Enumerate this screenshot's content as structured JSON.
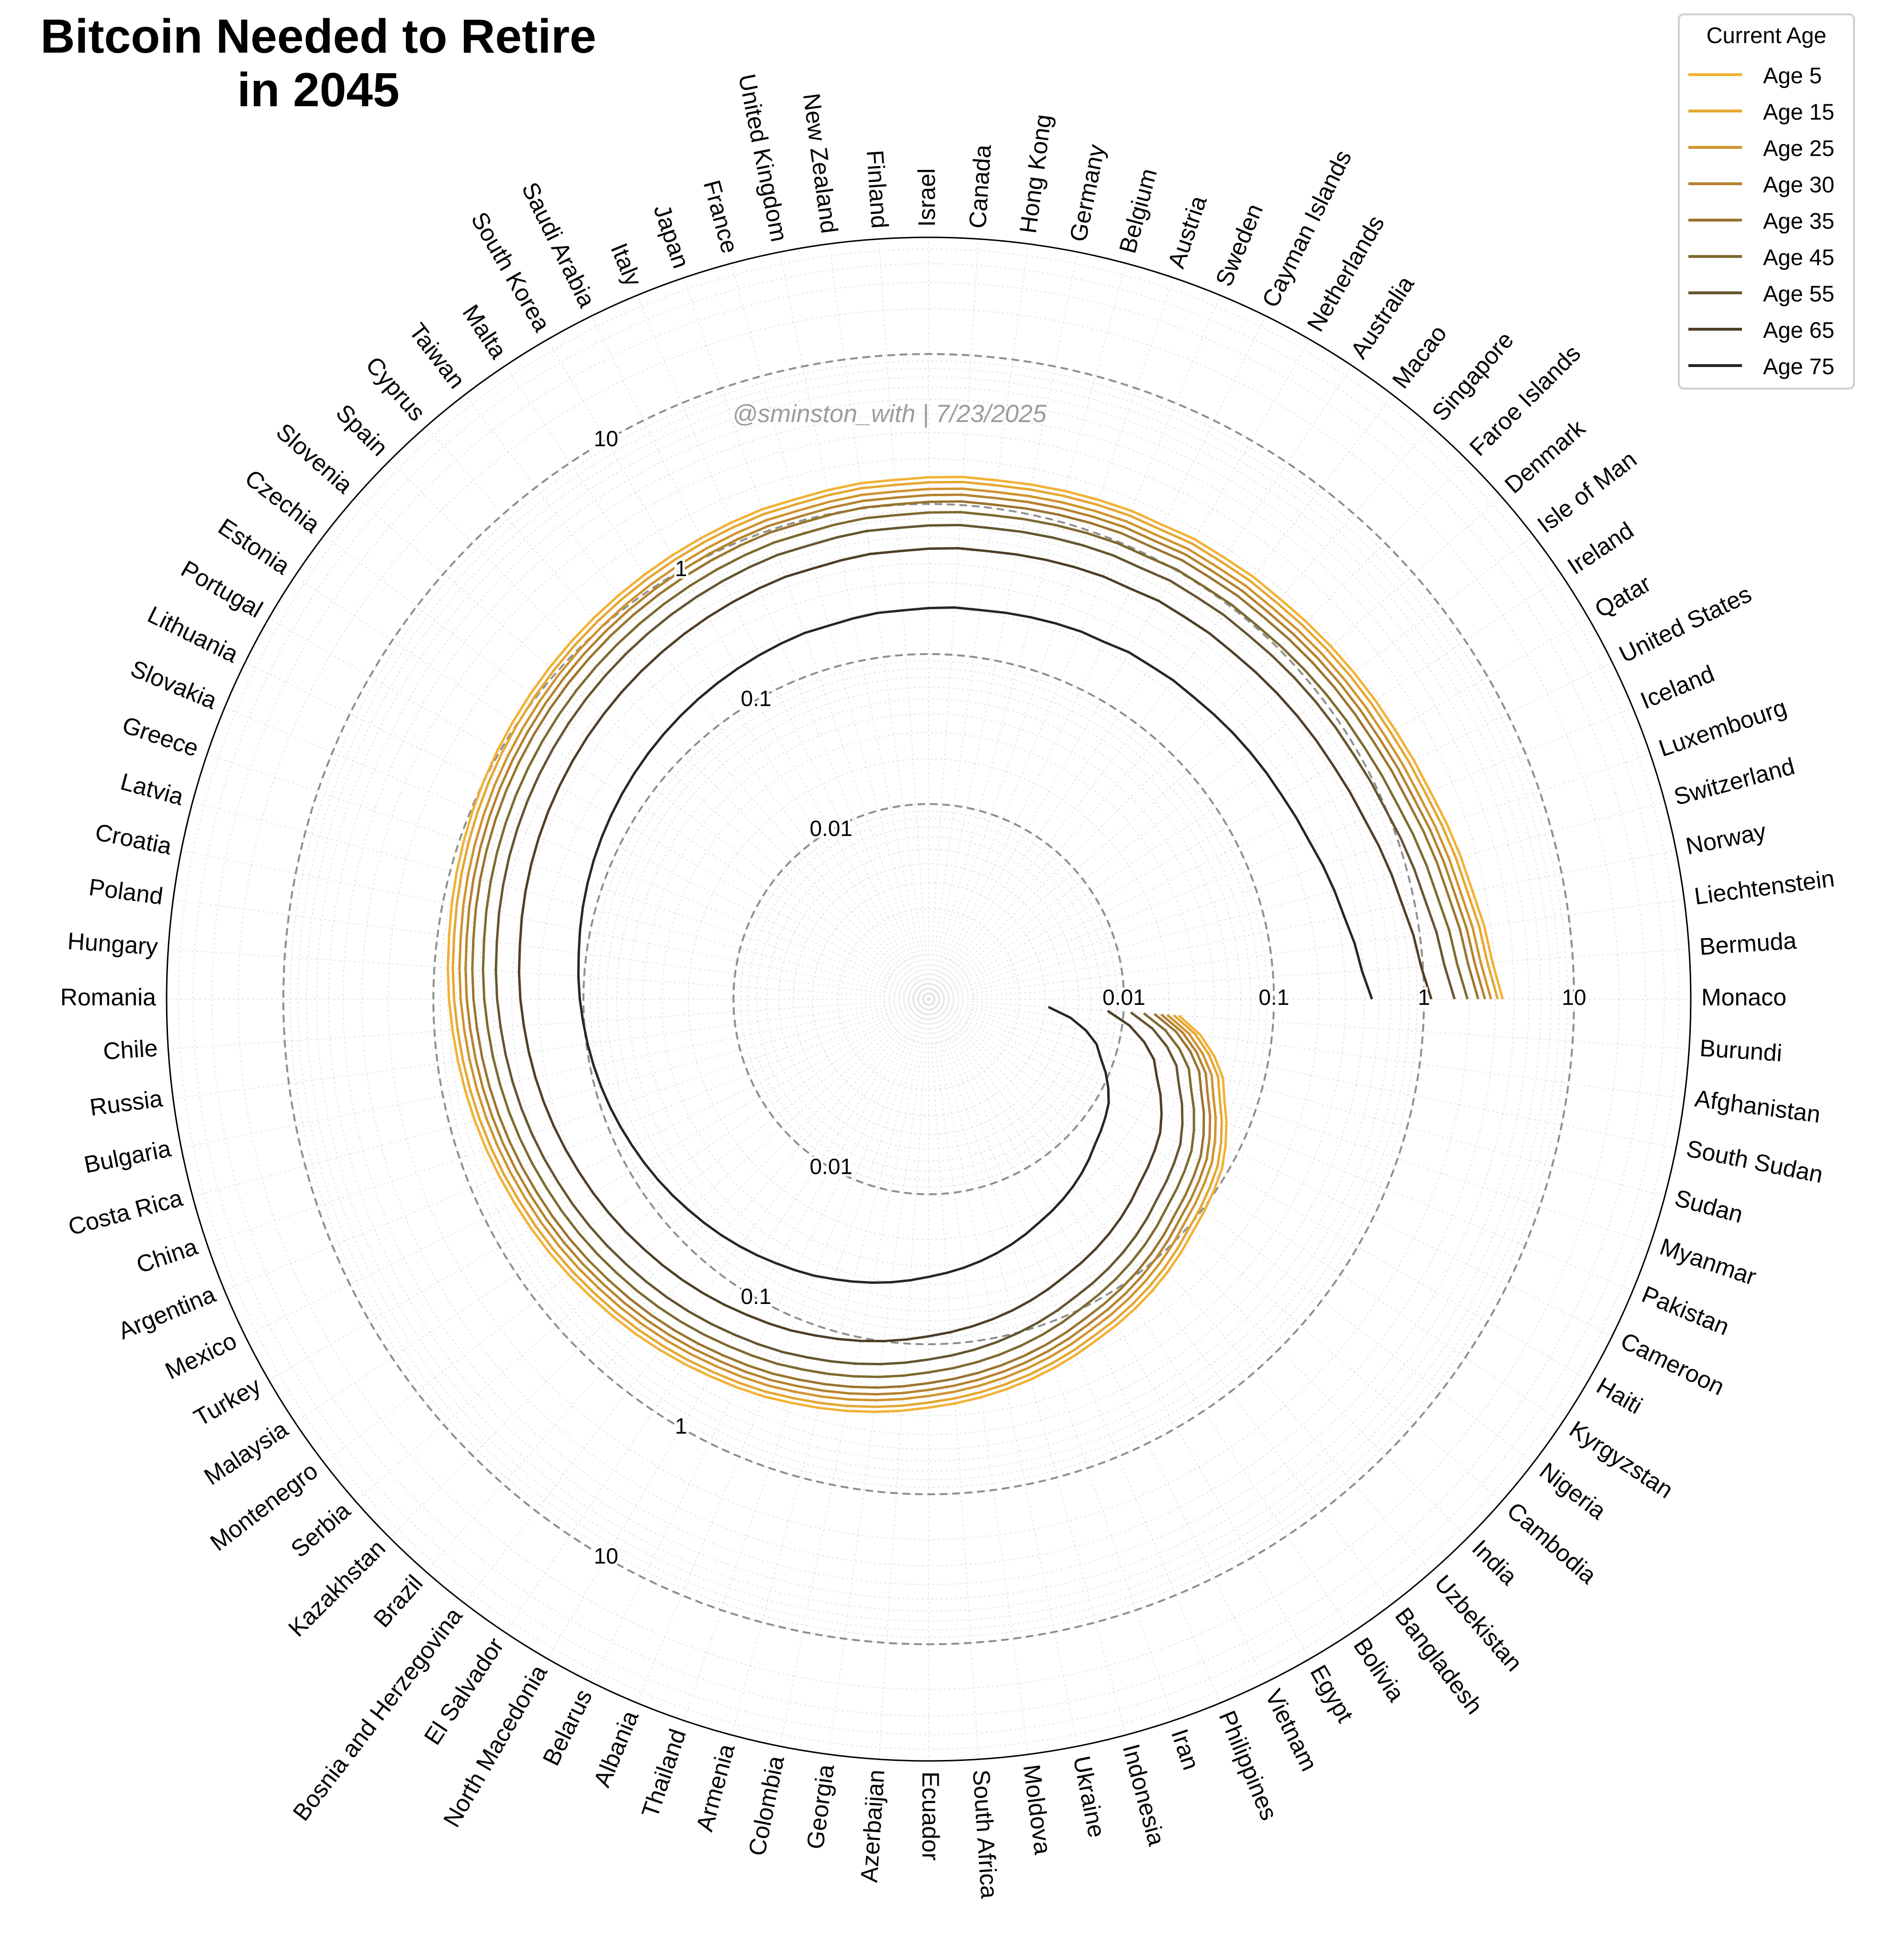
{
  "title_lines": [
    "Bitcoin Needed to Retire",
    "in 2045"
  ],
  "watermark": "@sminston_with  |  7/23/2025",
  "legend": {
    "title": "Current Age",
    "placement": "top-right"
  },
  "chart_data": {
    "type": "line",
    "projection": "polar",
    "title": "Bitcoin Needed to Retire in 2045",
    "radial_scale": "log",
    "radial_range": [
      0.0005,
      60
    ],
    "grid": true,
    "countries": [
      "Monaco",
      "Bermuda",
      "Liechtenstein",
      "Norway",
      "Switzerland",
      "Luxembourg",
      "Iceland",
      "United States",
      "Qatar",
      "Ireland",
      "Isle of Man",
      "Denmark",
      "Faroe Islands",
      "Singapore",
      "Macao",
      "Australia",
      "Netherlands",
      "Cayman Islands",
      "Sweden",
      "Austria",
      "Belgium",
      "Germany",
      "Hong Kong",
      "Canada",
      "Israel",
      "Finland",
      "New Zealand",
      "United Kingdom",
      "France",
      "Japan",
      "Italy",
      "Saudi Arabia",
      "South Korea",
      "Malta",
      "Taiwan",
      "Cyprus",
      "Spain",
      "Slovenia",
      "Czechia",
      "Estonia",
      "Portugal",
      "Lithuania",
      "Slovakia",
      "Greece",
      "Latvia",
      "Croatia",
      "Poland",
      "Hungary",
      "Romania",
      "Chile",
      "Russia",
      "Bulgaria",
      "Costa Rica",
      "China",
      "Argentina",
      "Mexico",
      "Turkey",
      "Malaysia",
      "Montenegro",
      "Serbia",
      "Kazakhstan",
      "Brazil",
      "Bosnia and Herzegovina",
      "El Salvador",
      "North Macedonia",
      "Belarus",
      "Albania",
      "Thailand",
      "Armenia",
      "Colombia",
      "Georgia",
      "Azerbaijan",
      "Ecuador",
      "South Africa",
      "Moldova",
      "Ukraine",
      "Indonesia",
      "Iran",
      "Philippines",
      "Vietnam",
      "Egypt",
      "Bolivia",
      "Bangladesh",
      "Uzbekistan",
      "India",
      "Cambodia",
      "Nigeria",
      "Kyrgyzstan",
      "Haiti",
      "Cameroon",
      "Pakistan",
      "Myanmar",
      "Sudan",
      "South Sudan",
      "Afghanistan",
      "Burundi"
    ],
    "rings": [
      {
        "value": 0.01,
        "labels": [
          "0.01",
          "0.01",
          "0.01"
        ]
      },
      {
        "value": 0.1,
        "labels": [
          "0.1",
          "0.1",
          "0.1"
        ]
      },
      {
        "value": 1,
        "labels": [
          "1",
          "1",
          "1"
        ]
      },
      {
        "value": 10,
        "labels": [
          "10",
          "10",
          "10"
        ]
      }
    ],
    "base_shape": [
      1.0,
      0.87,
      0.81,
      0.74,
      0.7,
      0.66,
      0.62,
      0.6,
      0.58,
      0.57,
      0.56,
      0.55,
      0.54,
      0.53,
      0.53,
      0.52,
      0.52,
      0.5,
      0.5,
      0.49,
      0.48,
      0.47,
      0.46,
      0.46,
      0.45,
      0.44,
      0.44,
      0.43,
      0.42,
      0.42,
      0.41,
      0.4,
      0.39,
      0.38,
      0.37,
      0.36,
      0.35,
      0.34,
      0.33,
      0.32,
      0.31,
      0.3,
      0.29,
      0.28,
      0.27,
      0.26,
      0.25,
      0.243,
      0.235,
      0.226,
      0.218,
      0.21,
      0.202,
      0.194,
      0.186,
      0.178,
      0.171,
      0.164,
      0.157,
      0.15,
      0.144,
      0.138,
      0.132,
      0.126,
      0.12,
      0.115,
      0.11,
      0.104,
      0.099,
      0.094,
      0.089,
      0.084,
      0.079,
      0.075,
      0.071,
      0.067,
      0.063,
      0.059,
      0.055,
      0.051,
      0.048,
      0.045,
      0.042,
      0.039,
      0.036,
      0.033,
      0.031,
      0.029,
      0.027,
      0.024,
      0.021,
      0.018,
      0.016,
      0.013,
      0.01,
      0.007
    ],
    "series": [
      {
        "name": "Age 5",
        "color": "#f2b134",
        "scale": 3.35
      },
      {
        "name": "Age 15",
        "color": "#e5a630",
        "scale": 3.1
      },
      {
        "name": "Age 25",
        "color": "#cf9430",
        "scale": 2.8
      },
      {
        "name": "Age 30",
        "color": "#b5822f",
        "scale": 2.55
      },
      {
        "name": "Age 35",
        "color": "#9a742f",
        "scale": 2.3
      },
      {
        "name": "Age 45",
        "color": "#7d6a2e",
        "scale": 1.95
      },
      {
        "name": "Age 55",
        "color": "#655530",
        "scale": 1.6
      },
      {
        "name": "Age 65",
        "color": "#4e3e28",
        "scale": 1.12
      },
      {
        "name": "Age 75",
        "color": "#262626",
        "scale": 0.45
      }
    ]
  }
}
